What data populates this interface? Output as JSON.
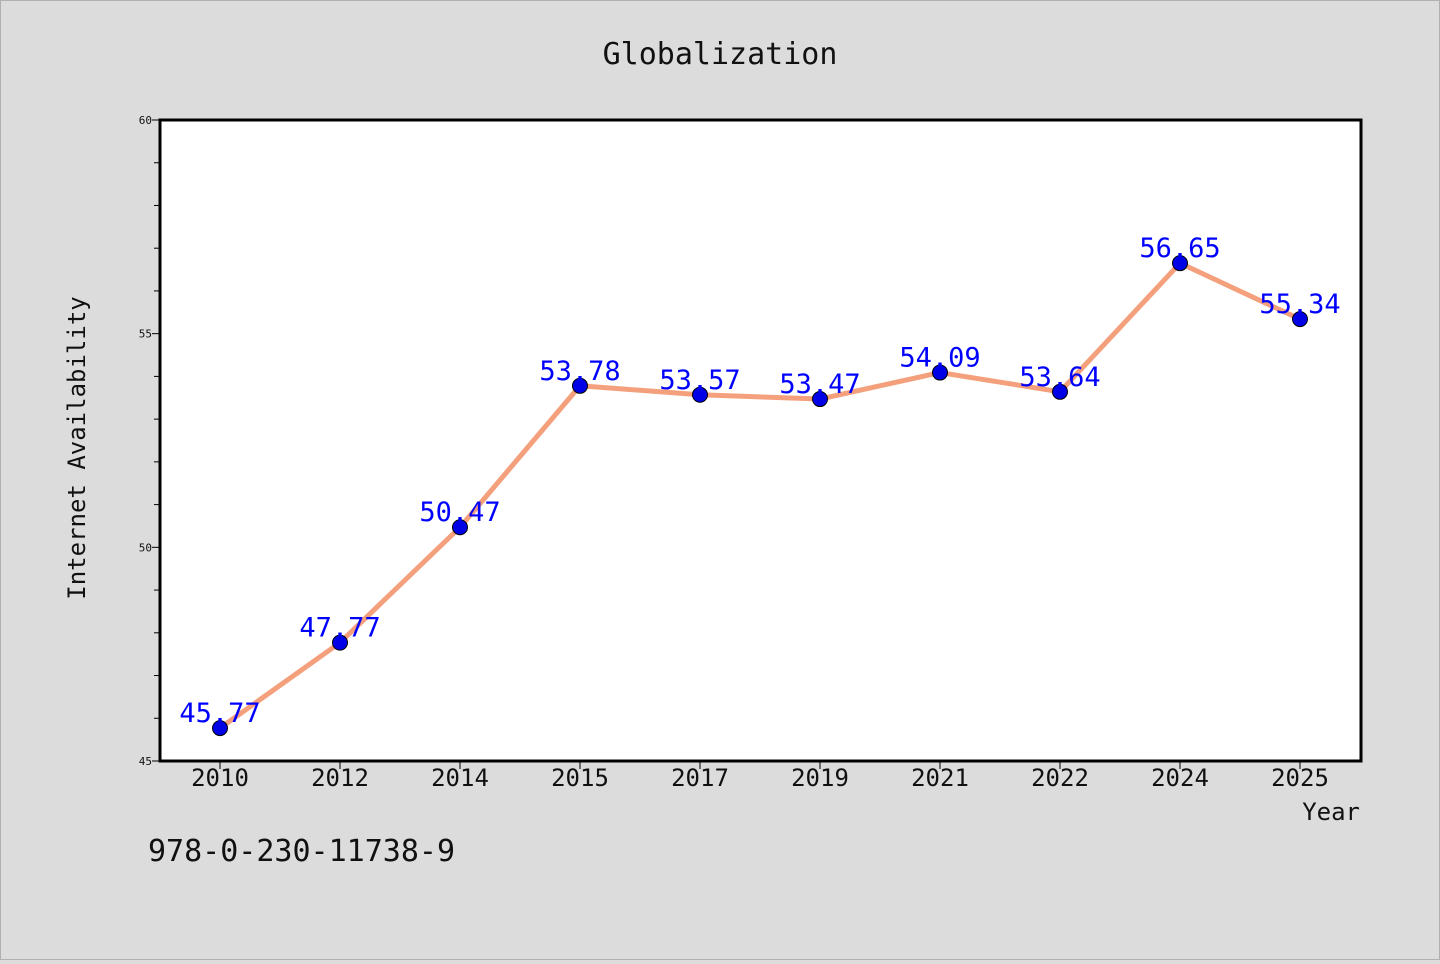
{
  "chart_data": {
    "type": "line",
    "title": "Globalization",
    "xlabel": "Year",
    "ylabel": "Internet Availability",
    "categories": [
      "2010",
      "2012",
      "2014",
      "2015",
      "2017",
      "2019",
      "2021",
      "2022",
      "2024",
      "2025"
    ],
    "values": [
      45.77,
      47.77,
      50.47,
      53.78,
      53.57,
      53.47,
      54.09,
      53.64,
      56.65,
      55.34
    ],
    "data_labels": [
      "45.77",
      "47.77",
      "50.47",
      "53.78",
      "53.57",
      "53.47",
      "54.09",
      "53.64",
      "56.65",
      "55.34"
    ],
    "ylim": [
      45,
      60
    ],
    "yticks": [
      "45",
      "50",
      "55",
      "60"
    ],
    "grid": false,
    "line_color": "#f4a07c",
    "marker_color": "#0000e6",
    "label_color": "#0000ff"
  },
  "footer": {
    "code": "978-0-230-11738-9"
  }
}
